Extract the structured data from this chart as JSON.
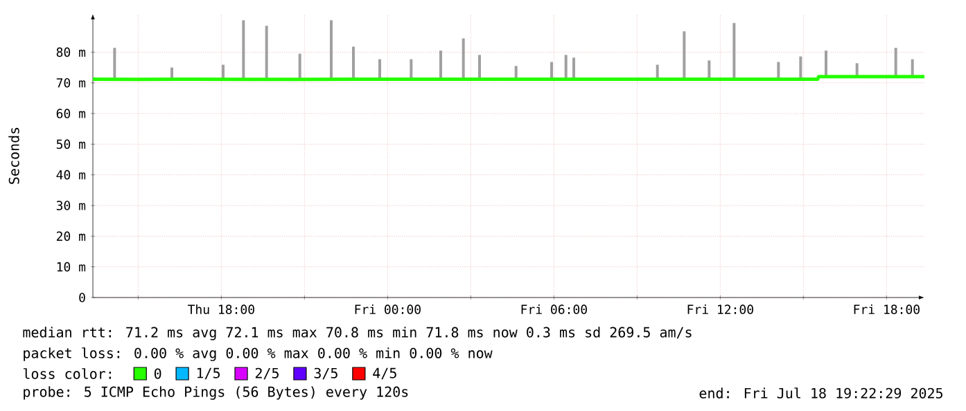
{
  "chart_data": {
    "type": "line",
    "ylabel": "Seconds",
    "xlim": [
      "2025-07-17T13:22",
      "2025-07-18T19:22"
    ],
    "xticks": [
      {
        "value": "2025-07-17T15:00",
        "label": null
      },
      {
        "value": "2025-07-17T18:00",
        "label": "Thu 18:00"
      },
      {
        "value": "2025-07-17T21:00",
        "label": null
      },
      {
        "value": "2025-07-18T00:00",
        "label": "Fri 00:00"
      },
      {
        "value": "2025-07-18T03:00",
        "label": null
      },
      {
        "value": "2025-07-18T06:00",
        "label": "Fri 06:00"
      },
      {
        "value": "2025-07-18T09:00",
        "label": null
      },
      {
        "value": "2025-07-18T12:00",
        "label": "Fri 12:00"
      },
      {
        "value": "2025-07-18T15:00",
        "label": null
      },
      {
        "value": "2025-07-18T18:00",
        "label": "Fri 18:00"
      }
    ],
    "ylim": [
      0,
      92.5
    ],
    "yticks": [
      0,
      {
        "value": 10,
        "label": "10 m"
      },
      {
        "value": 20,
        "label": "20 m"
      },
      {
        "value": 30,
        "label": "30 m"
      },
      {
        "value": 40,
        "label": "40 m"
      },
      {
        "value": 50,
        "label": "50 m"
      },
      {
        "value": 60,
        "label": "60 m"
      },
      {
        "value": 70,
        "label": "70 m"
      },
      {
        "value": 80,
        "label": "80 m"
      }
    ],
    "grid": true,
    "legend": "bottom",
    "series": [
      {
        "type": "bar",
        "color": "#a0a0a0",
        "x": [
          "2025-07-17T14:09",
          "2025-07-17T16:13",
          "2025-07-17T18:04",
          "2025-07-17T18:48",
          "2025-07-17T19:38",
          "2025-07-17T20:50",
          "2025-07-17T21:58",
          "2025-07-17T22:46",
          "2025-07-17T23:43",
          "2025-07-18T00:51",
          "2025-07-18T01:55",
          "2025-07-18T02:44",
          "2025-07-18T03:19",
          "2025-07-18T04:38",
          "2025-07-18T05:55",
          "2025-07-18T06:26",
          "2025-07-18T06:43",
          "2025-07-18T09:44",
          "2025-07-18T10:42",
          "2025-07-18T11:36",
          "2025-07-18T12:30",
          "2025-07-18T14:06",
          "2025-07-18T14:54",
          "2025-07-18T15:49",
          "2025-07-18T16:56",
          "2025-07-18T18:20",
          "2025-07-18T18:56"
        ],
        "base": [
          71.2,
          71.2,
          71.2,
          71.2,
          71.2,
          71.2,
          71.2,
          71.2,
          71.2,
          71.2,
          71.2,
          71.2,
          71.2,
          71.2,
          71.2,
          71.2,
          71.2,
          71.2,
          71.2,
          71.2,
          71.2,
          71.2,
          71.2,
          72.0,
          72.0,
          72.0,
          72.0
        ],
        "values": [
          10.2,
          3.8,
          4.7,
          19.2,
          17.4,
          8.3,
          19.2,
          10.6,
          6.5,
          6.5,
          9.3,
          13.3,
          7.9,
          4.3,
          5.6,
          7.9,
          7.0,
          4.7,
          15.6,
          6.1,
          18.3,
          5.6,
          7.4,
          8.5,
          4.4,
          9.4,
          5.7
        ]
      },
      {
        "name": "0",
        "color": "#26ff00",
        "x": [
          "2025-07-17T13:22",
          "2025-07-17T15:00",
          "2025-07-17T17:00",
          "2025-07-17T19:00",
          "2025-07-17T21:00",
          "2025-07-17T23:00",
          "2025-07-18T01:00",
          "2025-07-18T03:00",
          "2025-07-18T05:00",
          "2025-07-18T07:00",
          "2025-07-18T09:00",
          "2025-07-18T11:00",
          "2025-07-18T13:00",
          "2025-07-18T15:00",
          "2025-07-18T15:31",
          "2025-07-18T15:33",
          "2025-07-18T17:00",
          "2025-07-18T19:22"
        ],
        "values": [
          71.2,
          71.1,
          71.2,
          71.1,
          71.1,
          71.2,
          71.2,
          71.2,
          71.2,
          71.2,
          71.2,
          71.2,
          71.2,
          71.2,
          71.2,
          72.0,
          72.0,
          72.0
        ]
      },
      {
        "name": "1/5",
        "color": "#00b8ff"
      },
      {
        "name": "2/5",
        "color": "#d800ff"
      },
      {
        "name": "3/5",
        "color": "#6000ff"
      },
      {
        "name": "4/5",
        "color": "#ff0000"
      }
    ],
    "annotations": [
      "median rtt: 71.2 ms avg 72.1 ms max 70.8 ms min 71.8 ms now 0.3 ms sd 269.5 am/s",
      "packet loss: 0.00 % avg 0.00 % max 0.00 % min 0.00 % now",
      "loss color:",
      "probe: 5 ICMP Echo Pings (56 Bytes) every 120s",
      "end: Fri Jul 18 19:22:29 2025"
    ]
  }
}
